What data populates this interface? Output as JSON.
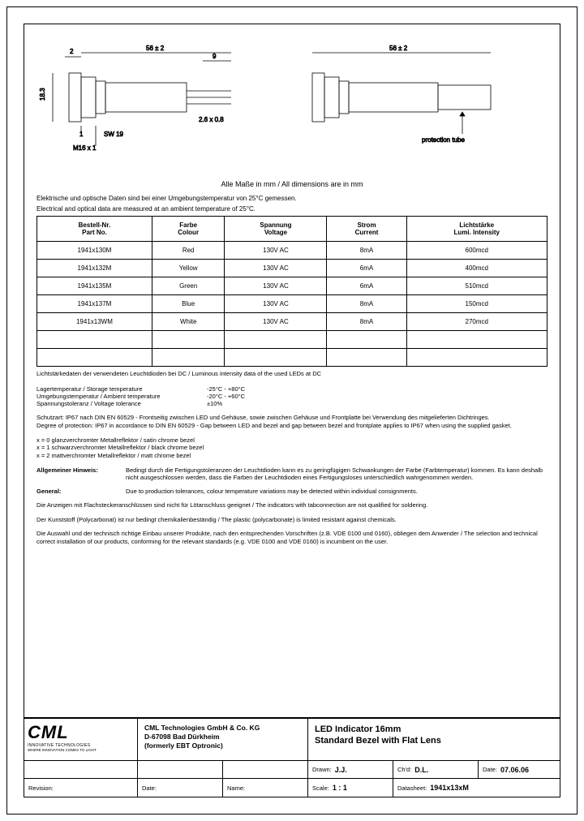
{
  "dimensions": {
    "d1": "2",
    "d2": "56 ± 2",
    "d3": "9",
    "d4": "56 ± 2",
    "h1": "18.3",
    "t1": "1",
    "sw": "SW 19",
    "thread": "M16 x 1",
    "pin": "2.6 x 0.8",
    "protube": "protection tube"
  },
  "dim_note": "Alle Maße in mm / All dimensions are in mm",
  "intro_de": "Elektrische und optische Daten sind bei einer Umgebungstemperatur von 25°C gemessen.",
  "intro_en": "Electrical and optical data are measured at an ambient temperature of 25°C.",
  "table": {
    "headers": [
      {
        "de": "Bestell-Nr.",
        "en": "Part No."
      },
      {
        "de": "Farbe",
        "en": "Colour"
      },
      {
        "de": "Spannung",
        "en": "Voltage"
      },
      {
        "de": "Strom",
        "en": "Current"
      },
      {
        "de": "Lichtstärke",
        "en": "Lumi. Intensity"
      }
    ],
    "rows": [
      [
        "1941x130M",
        "Red",
        "130V AC",
        "8mA",
        "600mcd"
      ],
      [
        "1941x132M",
        "Yellow",
        "130V AC",
        "6mA",
        "400mcd"
      ],
      [
        "1941x135M",
        "Green",
        "130V AC",
        "6mA",
        "510mcd"
      ],
      [
        "1941x137M",
        "Blue",
        "130V AC",
        "8mA",
        "150mcd"
      ],
      [
        "1941x13WM",
        "White",
        "130V AC",
        "8mA",
        "270mcd"
      ],
      [
        "",
        "",
        "",
        "",
        ""
      ],
      [
        "",
        "",
        "",
        "",
        ""
      ]
    ]
  },
  "lumi_note": "Lichtstärkedaten der verwendeten Leuchtdioden bei DC / Luminous intensity data of the used LEDs at DC",
  "specs": [
    {
      "label": "Lagertemperatur / Storage temperature",
      "value": "-25°C - +80°C"
    },
    {
      "label": "Umgebungstemperatur / Ambient temperature",
      "value": "-20°C - +60°C"
    },
    {
      "label": "Spannungstoleranz / Voltage tolerance",
      "value": "±10%"
    }
  ],
  "protection_de": "Schutzart: IP67 nach DIN EN 60529 - Frontseitig zwischen LED und Gehäuse, sowie zwischen Gehäuse und Frontplatte bei Verwendung des mitgelieferten Dichtringes.",
  "protection_en": "Degree of protection: IP67 in accordance to DIN EN 60529 - Gap between LED and bezel and gap between bezel and frontplate applies to IP67 when using the supplied gasket.",
  "x_lines": [
    "x = 0  glanzverchromter Metallreflektor / satin chrome bezel",
    "x = 1  schwarzverchromter Metallreflektor / black chrome bezel",
    "x = 2  mattverchromter Metallreflektor / matt chrome bezel"
  ],
  "general_de_label": "Allgemeiner Hinweis:",
  "general_de": "Bedingt durch die Fertigungstoleranzen der Leuchtdioden kann es zu geringfügigen Schwankungen der Farbe (Farbtemperatur) kommen. Es kann deshalb nicht ausgeschlossen werden, dass die Farben der Leuchtdioden eines Fertigungsloses unterschiedlich wahrgenommen werden.",
  "general_en_label": "General:",
  "general_en": "Due to production tolerances, colour temperature variations may be detected within individual consignments.",
  "solder_note": "Die Anzeigen mit Flachsteckeranschlüssen sind nicht für Lötanschluss geeignet / The indicators with tabconnection are not qualified for soldering.",
  "plastic_note": "Der Kunststoff (Polycarbonat) ist nur bedingt chemikalienbeständig / The plastic (polycarbonate) is limited resistant against chemicals.",
  "install_note": "Die Auswahl und der technisch richtige Einbau unserer Produkte, nach den entsprechenden Vorschriften (z.B. VDE 0100 und 0160), obliegen dem Anwender / The selection and technical correct installation of our products, conforming for the relevant standards (e.g. VDE 0100 and VDE 0160) is incumbent on the user.",
  "logo": {
    "name": "CML",
    "sub1": "INNOVATIVE TECHNOLOGIES",
    "sub2": "WHERE INNOVATION COMES TO LIGHT"
  },
  "company": {
    "l1": "CML Technologies GmbH & Co. KG",
    "l2": "D-67098 Bad Dürkheim",
    "l3": "(formerly EBT Optronic)"
  },
  "product": {
    "l1": "LED Indicator 16mm",
    "l2": "Standard Bezel with Flat Lens"
  },
  "titleblock": {
    "drawn_lbl": "Drawn:",
    "drawn": "J.J.",
    "chkd_lbl": "Ch'd:",
    "chkd": "D.L.",
    "date_lbl": "Date:",
    "date": "07.06.06",
    "rev_lbl": "Revision:",
    "date2_lbl": "Date:",
    "name_lbl": "Name:",
    "scale_lbl": "Scale:",
    "scale": "1 : 1",
    "ds_lbl": "Datasheet:",
    "ds": "1941x13xM"
  }
}
